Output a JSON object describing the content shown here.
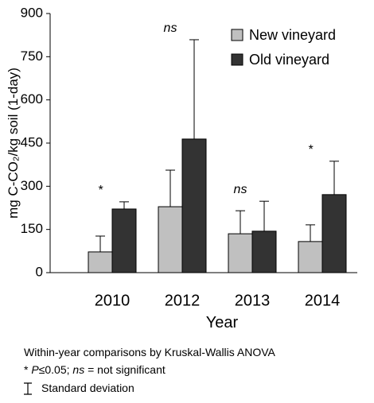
{
  "chart_data": {
    "type": "bar",
    "xlabel": "Year",
    "ylabel": "mg C-CO₂/kg soil (1-day)",
    "categories": [
      "2010",
      "2012",
      "2013",
      "2014"
    ],
    "series": [
      {
        "name": "New vineyard",
        "color": "#c0c0c0",
        "values": [
          72,
          229,
          135,
          108
        ],
        "errors": [
          55,
          127,
          80,
          58
        ]
      },
      {
        "name": "Old vineyard",
        "color": "#333333",
        "values": [
          221,
          464,
          144,
          271
        ],
        "errors": [
          25,
          345,
          104,
          116
        ]
      }
    ],
    "annotations": [
      "*",
      "ns",
      "ns",
      "*"
    ],
    "ylim": [
      0,
      900
    ],
    "yticks": [
      0,
      150,
      300,
      450,
      600,
      750,
      900
    ],
    "legend": "upper right",
    "footnotes": [
      [
        "Within-year comparisons by Kruskal-Wallis ANOVA"
      ],
      [
        "* ",
        "P",
        "≤0.05; ",
        "ns",
        " = not significant"
      ],
      [
        "Standard deviation"
      ]
    ]
  }
}
